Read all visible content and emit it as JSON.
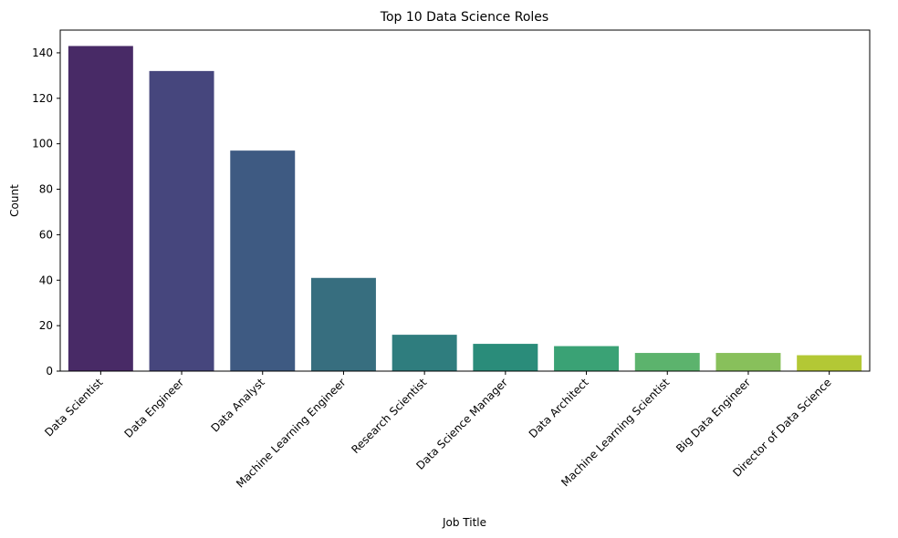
{
  "chart_data": {
    "type": "bar",
    "title": "Top 10 Data Science Roles",
    "xlabel": "Job Title",
    "ylabel": "Count",
    "ylim": [
      0,
      150
    ],
    "yticks": [
      0,
      20,
      40,
      60,
      80,
      100,
      120,
      140
    ],
    "grid": false,
    "categories": [
      "Data Scientist",
      "Data Engineer",
      "Data Analyst",
      "Machine Learning Engineer",
      "Research Scientist",
      "Data Science Manager",
      "Data Architect",
      "Machine Learning Scientist",
      "Big Data Engineer",
      "Director of Data Science"
    ],
    "values": [
      143,
      132,
      97,
      41,
      16,
      12,
      11,
      8,
      8,
      7
    ],
    "colors": [
      "#482a66",
      "#46467d",
      "#3e5a82",
      "#376e7f",
      "#2f7d7e",
      "#2a8c7a",
      "#3aa275",
      "#5cb36d",
      "#88c05b",
      "#b3c835"
    ]
  }
}
